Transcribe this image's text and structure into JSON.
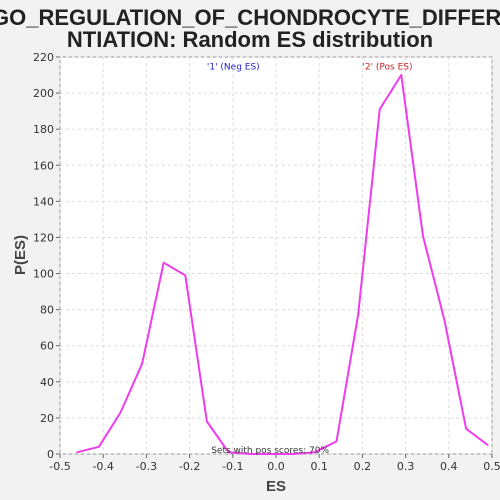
{
  "chart_data": {
    "type": "line",
    "title_lines": [
      "GO_REGULATION_OF_CHONDROCYTE_DIFFERE",
      "NTIATION: Random ES distribution"
    ],
    "xlabel": "ES",
    "ylabel": "P(ES)",
    "xlim": [
      -0.5,
      0.5
    ],
    "ylim": [
      0,
      220
    ],
    "x_ticks": [
      -0.5,
      -0.4,
      -0.3,
      -0.2,
      -0.1,
      0.0,
      0.1,
      0.2,
      0.3,
      0.4,
      0.5
    ],
    "x_tick_labels": [
      "-0.5",
      "-0.4",
      "-0.3",
      "-0.2",
      "-0.1",
      "0.0",
      "0.1",
      "0.2",
      "0.3",
      "0.4",
      "0.5"
    ],
    "y_ticks": [
      0,
      20,
      40,
      60,
      80,
      100,
      120,
      140,
      160,
      180,
      200,
      220
    ],
    "y_tick_labels": [
      "0",
      "20",
      "40",
      "60",
      "80",
      "100",
      "120",
      "140",
      "160",
      "180",
      "200",
      "220"
    ],
    "grid": true,
    "series": [
      {
        "color": "#ee3cee",
        "x": [
          -0.46,
          -0.41,
          -0.36,
          -0.31,
          -0.26,
          -0.21,
          -0.16,
          -0.11,
          -0.06,
          0.04,
          0.09,
          0.14,
          0.19,
          0.24,
          0.29,
          0.34,
          0.39,
          0.44,
          0.49
        ],
        "y": [
          1,
          4,
          23,
          50,
          106,
          99,
          18,
          1,
          0,
          0,
          1,
          7,
          77,
          191,
          210,
          121,
          74,
          14,
          5
        ]
      }
    ],
    "annotations": [
      {
        "text": "'1' (Neg ES)",
        "x": -0.16,
        "y": 213,
        "color": "#2222cc"
      },
      {
        "text": "'2' (Pos ES)",
        "x": 0.2,
        "y": 213,
        "color": "#cc2222"
      },
      {
        "text": "Sets with pos scores: 70%",
        "x": -0.15,
        "y": 0.5,
        "color": "#333333"
      }
    ]
  }
}
